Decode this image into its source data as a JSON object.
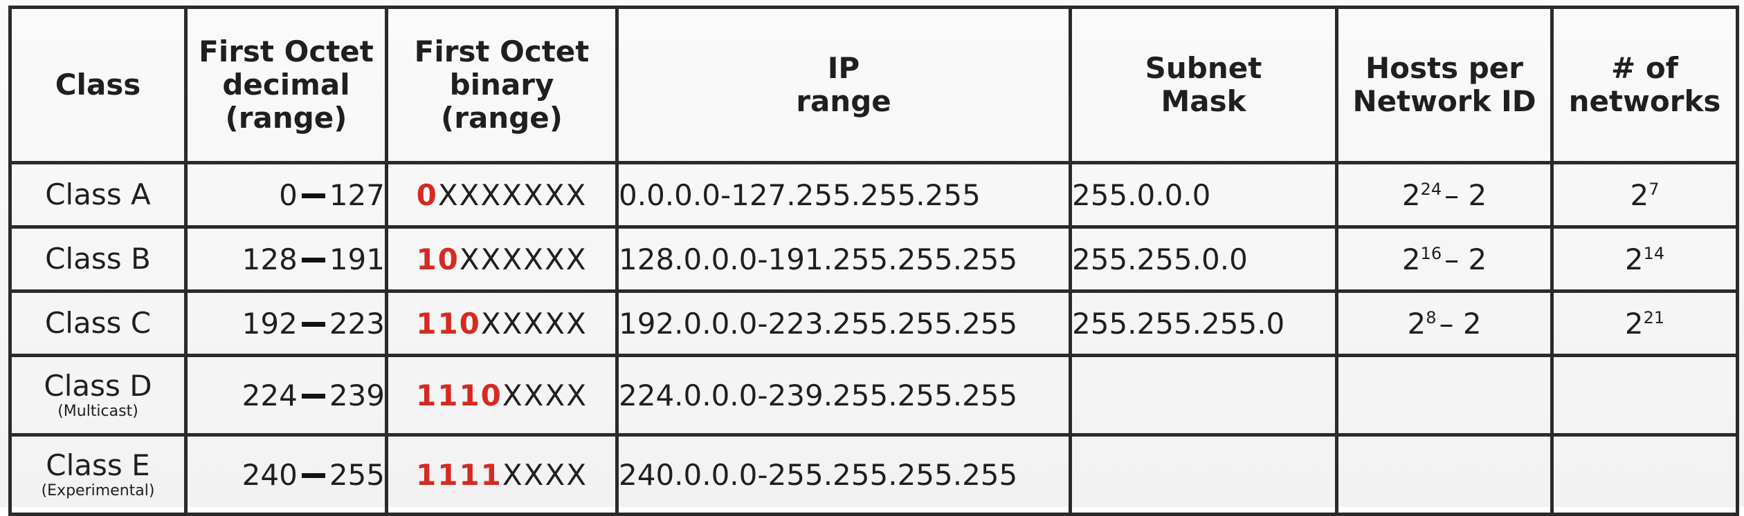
{
  "headers": {
    "class": [
      "Class"
    ],
    "decimal": [
      "First Octet",
      "decimal",
      "(range)"
    ],
    "binary": [
      "First Octet",
      "binary",
      "(range)"
    ],
    "ip_range": [
      "IP",
      "range"
    ],
    "subnet_mask": [
      "Subnet",
      "Mask"
    ],
    "hosts": [
      "Hosts per",
      "Network ID"
    ],
    "networks": [
      "# of",
      "networks"
    ]
  },
  "rows": [
    {
      "class": "Class A",
      "subtitle": "",
      "dec_start": "0",
      "dec_end": "127",
      "bin_prefix": "0",
      "bin_rest": "XXXXXXX",
      "ip_range": "0.0.0.0-127.255.255.255",
      "mask": "255.0.0.0",
      "hosts_base": "2",
      "hosts_exp": "24",
      "hosts_tail": "– 2",
      "nets_base": "2",
      "nets_exp": "7"
    },
    {
      "class": "Class B",
      "subtitle": "",
      "dec_start": "128",
      "dec_end": "191",
      "bin_prefix": "10",
      "bin_rest": "XXXXXX",
      "ip_range": "128.0.0.0-191.255.255.255",
      "mask": "255.255.0.0",
      "hosts_base": "2",
      "hosts_exp": "16",
      "hosts_tail": "– 2",
      "nets_base": "2",
      "nets_exp": "14"
    },
    {
      "class": "Class C",
      "subtitle": "",
      "dec_start": "192",
      "dec_end": "223",
      "bin_prefix": "110",
      "bin_rest": "XXXXX",
      "ip_range": "192.0.0.0-223.255.255.255",
      "mask": "255.255.255.0",
      "hosts_base": "2",
      "hosts_exp": "8",
      "hosts_tail": "– 2",
      "nets_base": "2",
      "nets_exp": "21"
    },
    {
      "class": "Class D",
      "subtitle": "(Multicast)",
      "dec_start": "224",
      "dec_end": "239",
      "bin_prefix": "1110",
      "bin_rest": "XXXX",
      "ip_range": "224.0.0.0-239.255.255.255",
      "mask": "",
      "hosts_base": "",
      "hosts_exp": "",
      "hosts_tail": "",
      "nets_base": "",
      "nets_exp": ""
    },
    {
      "class": "Class E",
      "subtitle": "(Experimental)",
      "dec_start": "240",
      "dec_end": "255",
      "bin_prefix": "1111",
      "bin_rest": "XXXX",
      "ip_range": "240.0.0.0-255.255.255.255",
      "mask": "",
      "hosts_base": "",
      "hosts_exp": "",
      "hosts_tail": "",
      "nets_base": "",
      "nets_exp": ""
    }
  ],
  "colors": {
    "binary_prefix": "#d42a22",
    "border": "#2a2a2a",
    "text": "#1f1f1f"
  }
}
